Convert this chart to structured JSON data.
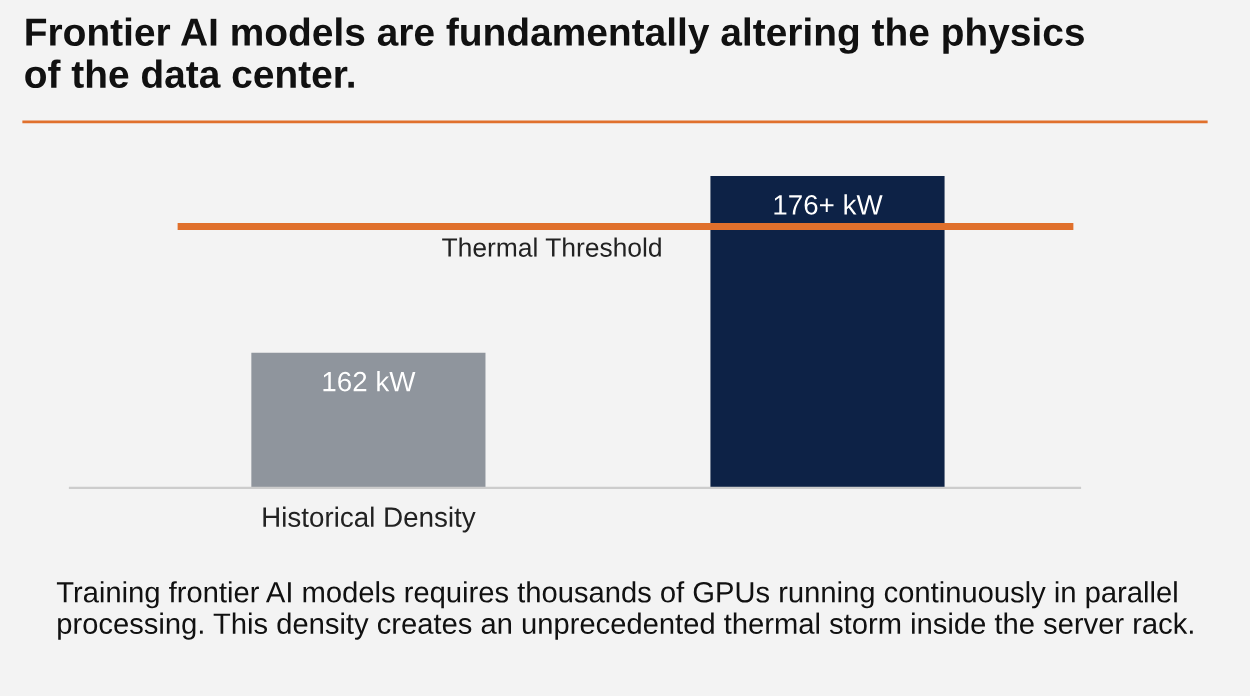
{
  "chart_data": {
    "type": "bar",
    "title": "Frontier AI models are fundamentally altering the physics\nof the data center.",
    "categories": [
      "Historical Density",
      null
    ],
    "values": [
      162,
      176
    ],
    "ylim": [
      151.3,
      176
    ],
    "colors": [
      "#8f959d",
      "#0d2246"
    ],
    "value_labels": [
      "162 kW",
      "176+ kW"
    ],
    "ref_lines": [
      {
        "axis": "y",
        "value": 172,
        "label": "Thermal Threshold",
        "color": "#e0702c"
      }
    ],
    "annotations": [
      "Training frontier AI models requires thousands of GPUs running continuously in parallel processing. This density creates an unprecedented thermal storm inside the server rack."
    ],
    "legend": false
  }
}
